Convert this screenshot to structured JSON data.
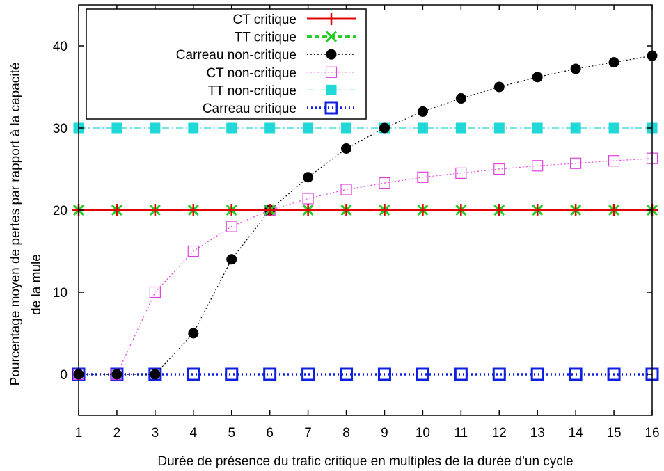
{
  "chart_data": {
    "type": "line",
    "title": "",
    "xlabel": "Durée de présence du trafic critique en multiples de la durée d'un cycle",
    "ylabel_lines": [
      "Pourcentage moyen de pertes par rapport à la capacité",
      "de la mule"
    ],
    "x": [
      1,
      2,
      3,
      4,
      5,
      6,
      7,
      8,
      9,
      10,
      11,
      12,
      13,
      14,
      15,
      16
    ],
    "xlim": [
      1,
      16
    ],
    "ylim": [
      -5,
      45
    ],
    "xticks": [
      "1",
      "2",
      "3",
      "4",
      "5",
      "6",
      "7",
      "8",
      "9",
      "10",
      "11",
      "12",
      "13",
      "14",
      "15",
      "16"
    ],
    "yticks": [
      0,
      10,
      20,
      30,
      40
    ],
    "ytick_labels": [
      "0",
      "10",
      "20",
      "30",
      "40"
    ],
    "grid": false,
    "legend_position": "top-left",
    "series": [
      {
        "name": "CT critique",
        "color": "#e00000",
        "line": "solid",
        "marker": "plus",
        "values": [
          20,
          20,
          20,
          20,
          20,
          20,
          20,
          20,
          20,
          20,
          20,
          20,
          20,
          20,
          20,
          20
        ]
      },
      {
        "name": "TT critique",
        "color": "#22cc22",
        "line": "dashed",
        "marker": "cross",
        "values": [
          20,
          20,
          20,
          20,
          20,
          20,
          20,
          20,
          20,
          20,
          20,
          20,
          20,
          20,
          20,
          20
        ]
      },
      {
        "name": "Carreau non-critique",
        "color": "#000000",
        "line": "dotted",
        "marker": "filled-circle",
        "values": [
          0,
          0,
          0,
          5,
          14,
          20,
          24,
          27.5,
          30,
          32,
          33.6,
          35,
          36.2,
          37.2,
          38,
          38.8
        ]
      },
      {
        "name": "CT non-critique",
        "color": "#e040e0",
        "line": "dotted",
        "marker": "open-square",
        "values": [
          0,
          0,
          10,
          15,
          18,
          20,
          21.4,
          22.5,
          23.3,
          24,
          24.5,
          25,
          25.4,
          25.7,
          26,
          26.3
        ]
      },
      {
        "name": "TT non-critique",
        "color": "#20d8d8",
        "line": "dashdot",
        "marker": "filled-square",
        "values": [
          30,
          30,
          30,
          30,
          30,
          30,
          30,
          30,
          30,
          30,
          30,
          30,
          30,
          30,
          30,
          30
        ]
      },
      {
        "name": "Carreau critique",
        "color": "#1020e0",
        "line": "dotted-thick",
        "marker": "open-square-thick",
        "values": [
          0,
          0,
          0,
          0,
          0,
          0,
          0,
          0,
          0,
          0,
          0,
          0,
          0,
          0,
          0,
          0
        ]
      }
    ]
  }
}
